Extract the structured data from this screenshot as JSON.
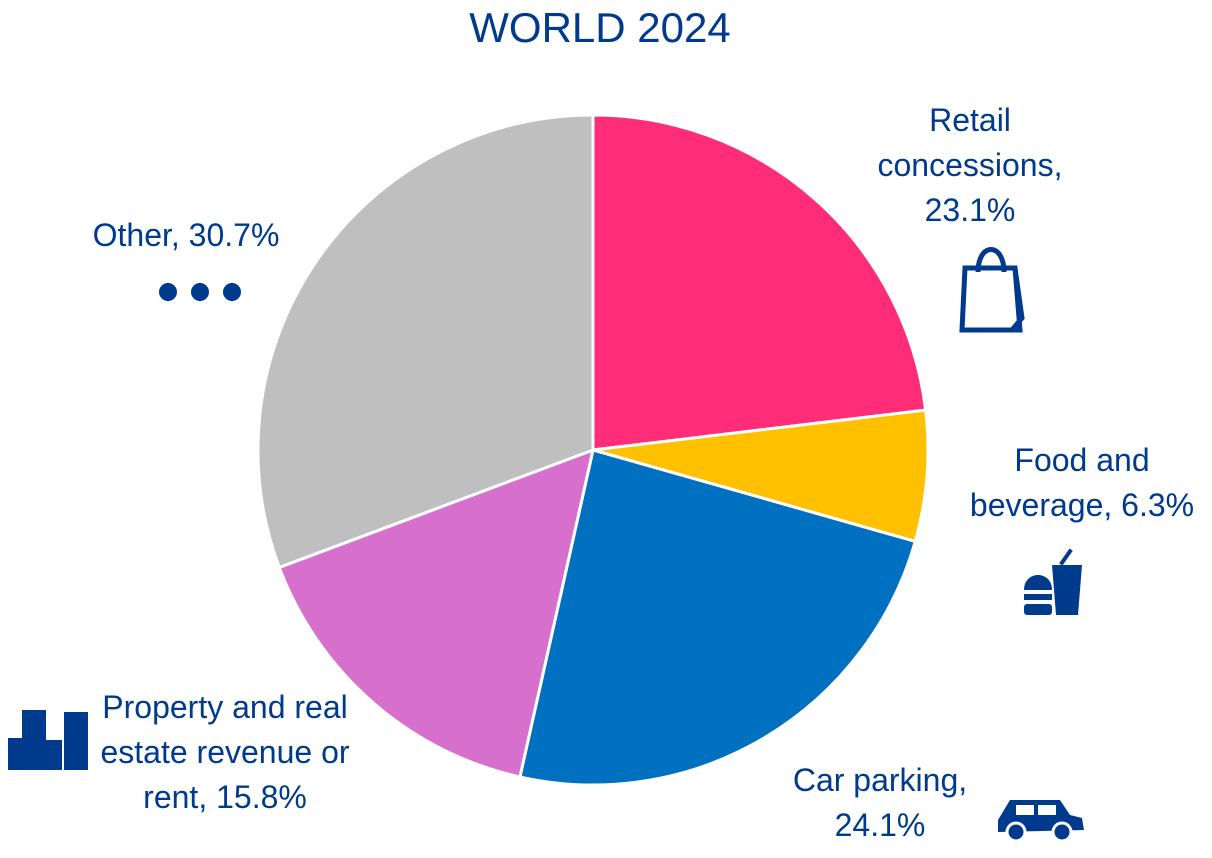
{
  "chart_data": {
    "type": "pie",
    "title": "WORLD 2024",
    "values": [
      23.1,
      6.3,
      24.1,
      15.8,
      30.7
    ],
    "value_labels": [
      "Retail concessions, 23.1%",
      "Food and beverage, 6.3%",
      "Car parking, 24.1%",
      "Property and real estate revenue or rent, 15.8%",
      "Other, 30.7%"
    ],
    "colors": [
      "#ff2d78",
      "#ffc000",
      "#0070c0",
      "#d670cc",
      "#bfbfbf"
    ]
  }
}
